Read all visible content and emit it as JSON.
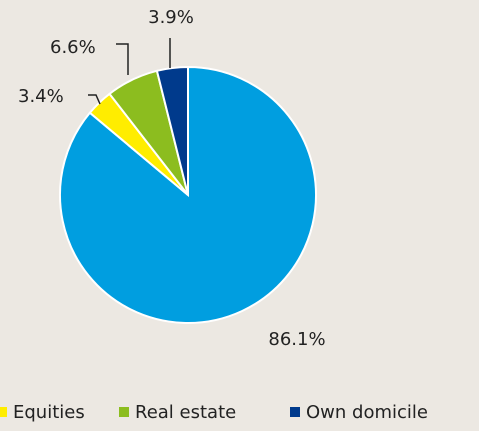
{
  "chart_data": {
    "type": "pie",
    "categories": [
      null,
      "Equities",
      "Real estate",
      "Own domicile"
    ],
    "values": [
      86.1,
      3.4,
      6.6,
      3.9
    ],
    "value_labels": [
      "86.1%",
      "3.4%",
      "6.6%",
      "3.9%"
    ],
    "colors": [
      "#009ee0",
      "#ffed00",
      "#8cbd1f",
      "#003a8c"
    ],
    "legend": "bottom"
  }
}
